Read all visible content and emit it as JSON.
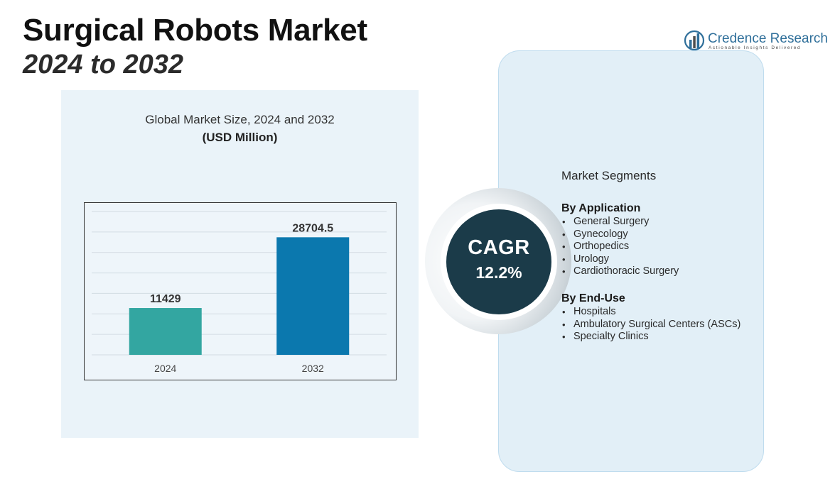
{
  "header": {
    "title": "Surgical Robots Market",
    "subtitle": "2024 to 2032"
  },
  "logo": {
    "name": "Credence Research",
    "tagline": "Actionable Insights Delivered",
    "icon": "bar-chart-logo-icon",
    "color": "#2f6f9a"
  },
  "chart_data": {
    "type": "bar",
    "title": "Global Market Size, 2024 and 2032",
    "unit_label": "(USD Million)",
    "categories": [
      "2024",
      "2032"
    ],
    "values": [
      11429,
      28704.5
    ],
    "value_labels": [
      "11429",
      "28704.5"
    ],
    "colors": [
      "#33a6a1",
      "#0b78ae"
    ],
    "xlabel": "",
    "ylabel": "",
    "ylim": [
      0,
      35000
    ],
    "grid": true,
    "legend": "none"
  },
  "cagr": {
    "label": "CAGR",
    "value": "12.2%"
  },
  "segments": {
    "heading": "Market Segments",
    "groups": [
      {
        "title": "By Application",
        "items": [
          "General Surgery",
          "Gynecology",
          "Orthopedics",
          "Urology",
          "Cardiothoracic Surgery"
        ]
      },
      {
        "title": "By End-Use",
        "items": [
          "Hospitals",
          "Ambulatory Surgical Centers (ASCs)",
          "Specialty Clinics"
        ]
      }
    ]
  }
}
